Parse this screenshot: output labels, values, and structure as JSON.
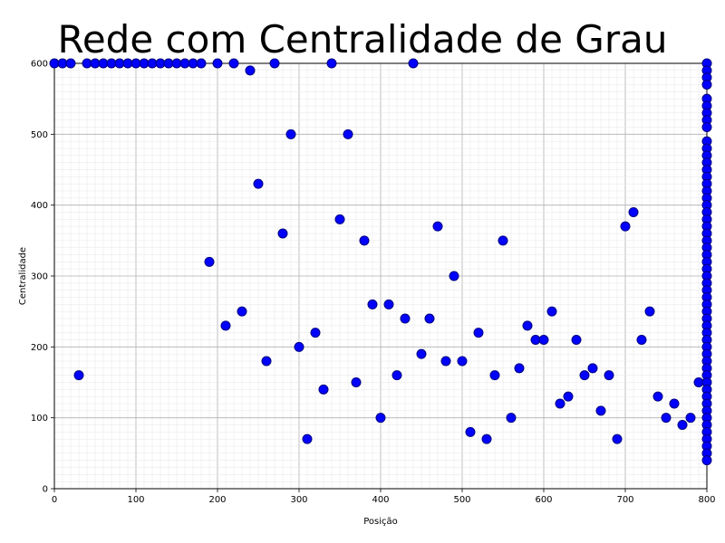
{
  "chart_data": {
    "type": "scatter",
    "title": "Rede com Centralidade de Grau",
    "xlabel": "Posição",
    "ylabel": "Centralidade",
    "xlim": [
      0,
      800
    ],
    "ylim": [
      0,
      600
    ],
    "x_ticks": [
      "0",
      "100",
      "200",
      "300",
      "400",
      "500",
      "600",
      "700",
      "800"
    ],
    "y_ticks": [
      "0",
      "100",
      "200",
      "300",
      "400",
      "500",
      "600"
    ],
    "grid": true,
    "marker_color": "#0000ff",
    "marker_edge_color": "#000080",
    "points": [
      [
        0,
        600
      ],
      [
        10,
        600
      ],
      [
        20,
        600
      ],
      [
        40,
        600
      ],
      [
        50,
        600
      ],
      [
        60,
        600
      ],
      [
        70,
        600
      ],
      [
        80,
        600
      ],
      [
        90,
        600
      ],
      [
        100,
        600
      ],
      [
        110,
        600
      ],
      [
        120,
        600
      ],
      [
        130,
        600
      ],
      [
        140,
        600
      ],
      [
        150,
        600
      ],
      [
        160,
        600
      ],
      [
        170,
        600
      ],
      [
        180,
        600
      ],
      [
        200,
        600
      ],
      [
        220,
        600
      ],
      [
        270,
        600
      ],
      [
        340,
        600
      ],
      [
        440,
        600
      ],
      [
        240,
        590
      ],
      [
        30,
        160
      ],
      [
        190,
        320
      ],
      [
        210,
        230
      ],
      [
        230,
        250
      ],
      [
        250,
        430
      ],
      [
        260,
        180
      ],
      [
        280,
        360
      ],
      [
        290,
        500
      ],
      [
        300,
        200
      ],
      [
        310,
        70
      ],
      [
        320,
        220
      ],
      [
        330,
        140
      ],
      [
        350,
        380
      ],
      [
        360,
        500
      ],
      [
        370,
        150
      ],
      [
        380,
        350
      ],
      [
        390,
        260
      ],
      [
        400,
        100
      ],
      [
        410,
        260
      ],
      [
        420,
        160
      ],
      [
        430,
        240
      ],
      [
        450,
        190
      ],
      [
        460,
        240
      ],
      [
        470,
        370
      ],
      [
        480,
        180
      ],
      [
        490,
        300
      ],
      [
        500,
        180
      ],
      [
        510,
        80
      ],
      [
        520,
        220
      ],
      [
        530,
        70
      ],
      [
        540,
        160
      ],
      [
        550,
        350
      ],
      [
        560,
        100
      ],
      [
        570,
        170
      ],
      [
        580,
        230
      ],
      [
        590,
        210
      ],
      [
        600,
        210
      ],
      [
        610,
        250
      ],
      [
        620,
        120
      ],
      [
        630,
        130
      ],
      [
        640,
        210
      ],
      [
        650,
        160
      ],
      [
        660,
        170
      ],
      [
        670,
        110
      ],
      [
        680,
        160
      ],
      [
        690,
        70
      ],
      [
        700,
        370
      ],
      [
        710,
        390
      ],
      [
        720,
        210
      ],
      [
        730,
        250
      ],
      [
        740,
        130
      ],
      [
        750,
        100
      ],
      [
        760,
        120
      ],
      [
        770,
        90
      ],
      [
        780,
        100
      ],
      [
        790,
        150
      ],
      [
        800,
        600
      ],
      [
        800,
        590
      ],
      [
        800,
        580
      ],
      [
        800,
        570
      ],
      [
        800,
        550
      ],
      [
        800,
        540
      ],
      [
        800,
        530
      ],
      [
        800,
        520
      ],
      [
        800,
        510
      ],
      [
        800,
        490
      ],
      [
        800,
        480
      ],
      [
        800,
        470
      ],
      [
        800,
        460
      ],
      [
        800,
        450
      ],
      [
        800,
        440
      ],
      [
        800,
        430
      ],
      [
        800,
        420
      ],
      [
        800,
        410
      ],
      [
        800,
        400
      ],
      [
        800,
        390
      ],
      [
        800,
        380
      ],
      [
        800,
        370
      ],
      [
        800,
        360
      ],
      [
        800,
        350
      ],
      [
        800,
        340
      ],
      [
        800,
        330
      ],
      [
        800,
        320
      ],
      [
        800,
        310
      ],
      [
        800,
        300
      ],
      [
        800,
        290
      ],
      [
        800,
        280
      ],
      [
        800,
        270
      ],
      [
        800,
        260
      ],
      [
        800,
        250
      ],
      [
        800,
        240
      ],
      [
        800,
        230
      ],
      [
        800,
        220
      ],
      [
        800,
        210
      ],
      [
        800,
        200
      ],
      [
        800,
        190
      ],
      [
        800,
        180
      ],
      [
        800,
        170
      ],
      [
        800,
        160
      ],
      [
        800,
        150
      ],
      [
        800,
        140
      ],
      [
        800,
        130
      ],
      [
        800,
        120
      ],
      [
        800,
        110
      ],
      [
        800,
        100
      ],
      [
        800,
        90
      ],
      [
        800,
        80
      ],
      [
        800,
        70
      ],
      [
        800,
        60
      ],
      [
        800,
        50
      ],
      [
        800,
        40
      ]
    ]
  }
}
